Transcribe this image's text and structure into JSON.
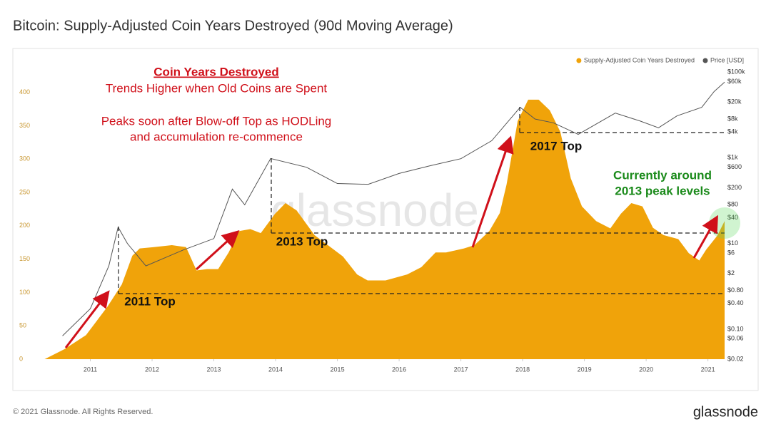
{
  "chart_data": {
    "type": "area",
    "title": "Bitcoin: Supply-Adjusted Coin Years Destroyed (90d Moving Average)",
    "xlim": [
      2010.0,
      2021.27
    ],
    "xticks": [
      2011,
      2012,
      2013,
      2014,
      2015,
      2016,
      2017,
      2018,
      2019,
      2020,
      2021
    ],
    "ylim": [
      0,
      437
    ],
    "yticks": [
      0,
      50,
      100,
      150,
      200,
      250,
      300,
      350,
      400
    ],
    "y2lim": [
      0.02,
      126000
    ],
    "y2log": true,
    "y2ticks": [
      {
        "value": 100000,
        "label": "$100k"
      },
      {
        "value": 60000,
        "label": "$60k"
      },
      {
        "value": 20000,
        "label": "$20k"
      },
      {
        "value": 8000,
        "label": "$8k"
      },
      {
        "value": 4000,
        "label": "$4k"
      },
      {
        "value": 1000,
        "label": "$1k"
      },
      {
        "value": 600,
        "label": "$600"
      },
      {
        "value": 200,
        "label": "$200"
      },
      {
        "value": 80,
        "label": "$80"
      },
      {
        "value": 40,
        "label": "$40"
      },
      {
        "value": 10,
        "label": "$10"
      },
      {
        "value": 6,
        "label": "$6"
      },
      {
        "value": 2,
        "label": "$2"
      },
      {
        "value": 0.8,
        "label": "$0.80"
      },
      {
        "value": 0.4,
        "label": "$0.40"
      },
      {
        "value": 0.1,
        "label": "$0.10"
      },
      {
        "value": 0.06,
        "label": "$0.06"
      },
      {
        "value": 0.02,
        "label": "$0.02"
      }
    ],
    "grid": false,
    "legend": "top-right",
    "series": [
      {
        "name": "Supply-Adjusted Coin Years Destroyed",
        "type": "area",
        "color": "#f0a30a",
        "x": [
          2010.26,
          2010.58,
          2010.93,
          2011.28,
          2011.51,
          2011.68,
          2011.8,
          2012.03,
          2012.32,
          2012.55,
          2012.72,
          2012.89,
          2013.07,
          2013.24,
          2013.41,
          2013.59,
          2013.76,
          2013.99,
          2014.16,
          2014.34,
          2014.63,
          2014.86,
          2015.09,
          2015.32,
          2015.49,
          2015.78,
          2016.13,
          2016.36,
          2016.59,
          2016.76,
          2017.05,
          2017.22,
          2017.46,
          2017.63,
          2017.74,
          2017.92,
          2018.09,
          2018.26,
          2018.44,
          2018.61,
          2018.78,
          2018.96,
          2019.19,
          2019.42,
          2019.59,
          2019.76,
          2019.94,
          2020.11,
          2020.28,
          2020.52,
          2020.69,
          2020.86,
          2020.97,
          2021.15,
          2021.27
        ],
        "values": [
          0,
          15,
          36,
          79,
          112,
          155,
          166,
          168,
          171,
          168,
          133,
          135,
          135,
          160,
          192,
          195,
          189,
          218,
          234,
          223,
          186,
          170,
          154,
          127,
          118,
          118,
          127,
          138,
          160,
          160,
          166,
          171,
          192,
          219,
          262,
          357,
          389,
          389,
          373,
          341,
          271,
          229,
          207,
          196,
          218,
          234,
          229,
          197,
          186,
          180,
          159,
          148,
          164,
          185,
          207
        ]
      },
      {
        "name": "Price [USD]",
        "type": "line",
        "axis": "y2",
        "color": "#555555",
        "x": [
          2010.55,
          2011.0,
          2011.3,
          2011.45,
          2011.6,
          2011.9,
          2012.5,
          2013.0,
          2013.3,
          2013.5,
          2013.92,
          2014.5,
          2015.0,
          2015.5,
          2016.0,
          2016.5,
          2017.0,
          2017.5,
          2017.96,
          2018.2,
          2018.5,
          2018.9,
          2019.5,
          2019.9,
          2020.2,
          2020.5,
          2020.9,
          2021.1,
          2021.27
        ],
        "values": [
          0.07,
          0.3,
          3,
          24,
          10,
          3,
          7,
          13,
          186,
          80,
          960,
          600,
          250,
          240,
          430,
          650,
          950,
          2500,
          15000,
          8000,
          6500,
          3500,
          11000,
          7200,
          5000,
          9500,
          15000,
          35000,
          58000
        ]
      }
    ],
    "annotations": [
      "Coin Years Destroyed",
      "Trends Higher when Old Coins are Spent",
      "Peaks soon after Blow-off Top as HODLing",
      "and accumulation re-commence",
      "2011 Top",
      "2013 Top",
      "2017 Top",
      "Currently around",
      "2013 peak levels"
    ],
    "watermark": "glassnode",
    "footer": "© 2021 Glassnode. All Rights Reserved.",
    "brand": "glassnode"
  }
}
